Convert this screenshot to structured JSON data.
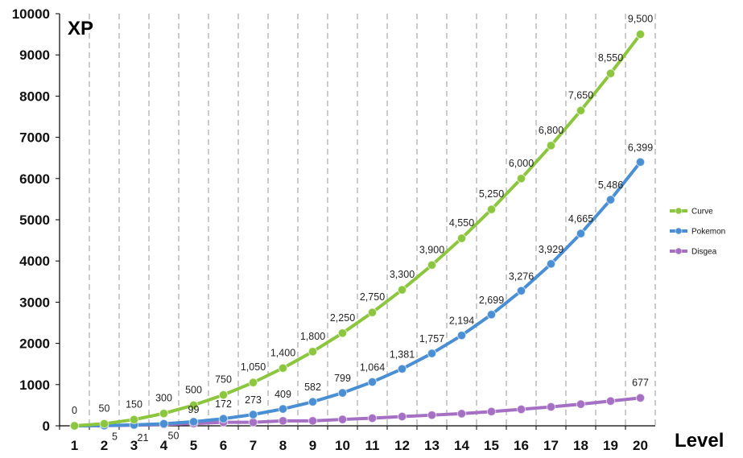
{
  "chart_data": {
    "type": "line",
    "title": "",
    "xlabel": "Level",
    "ylabel": "XP",
    "x": [
      1,
      2,
      3,
      4,
      5,
      6,
      7,
      8,
      9,
      10,
      11,
      12,
      13,
      14,
      15,
      16,
      17,
      18,
      19,
      20
    ],
    "ylim": [
      0,
      10000
    ],
    "yticks": [
      0,
      1000,
      2000,
      3000,
      4000,
      5000,
      6000,
      7000,
      8000,
      9000,
      10000
    ],
    "grid": "vertical dashed",
    "legend_position": "right",
    "series": [
      {
        "name": "Curve",
        "color": "#8cc63f",
        "values": [
          0,
          50,
          150,
          300,
          500,
          750,
          1050,
          1400,
          1800,
          2250,
          2750,
          3300,
          3900,
          4550,
          5250,
          6000,
          6800,
          7650,
          8550,
          9500
        ],
        "labels": [
          "0",
          "50",
          "150",
          "300",
          "500",
          "750",
          "1,050",
          "1,400",
          "1,800",
          "2,250",
          "2,750",
          "3,300",
          "3,900",
          "4,550",
          "5,250",
          "6,000",
          "6,800",
          "7,650",
          "8,550",
          "9,500"
        ]
      },
      {
        "name": "Pokemon",
        "color": "#4a8fd4",
        "values": [
          0,
          5,
          21,
          50,
          99,
          172,
          273,
          409,
          582,
          799,
          1064,
          1381,
          1757,
          2194,
          2699,
          3276,
          3929,
          4665,
          5486,
          6399
        ],
        "labels": [
          "",
          "5",
          "21",
          "50",
          "99",
          "172",
          "273",
          "409",
          "582",
          "799",
          "1,064",
          "1,381",
          "1,757",
          "2,194",
          "2,699",
          "3,276",
          "3,929",
          "4,665",
          "5,486",
          "6,399"
        ]
      },
      {
        "name": "Disgea",
        "color": "#a56fc4",
        "values": [
          0,
          5,
          15,
          32,
          55,
          85,
          85,
          120,
          120,
          155,
          185,
          225,
          260,
          295,
          345,
          400,
          460,
          525,
          600,
          677
        ],
        "labels": [
          "",
          "",
          "",
          "",
          "",
          "",
          "",
          "",
          "",
          "",
          "",
          "",
          "",
          "",
          "",
          "",
          "",
          "",
          "",
          "677"
        ]
      }
    ]
  }
}
